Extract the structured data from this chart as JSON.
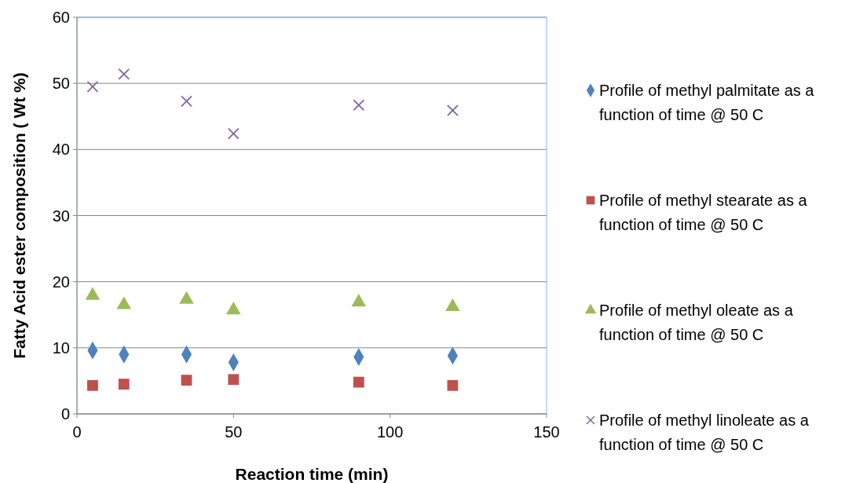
{
  "chart_data": {
    "type": "scatter",
    "xlabel": "Reaction time (min)",
    "ylabel": "Fatty Acid ester composition ( Wt %)",
    "x": [
      5,
      15,
      35,
      50,
      90,
      120
    ],
    "xlim": [
      0,
      150
    ],
    "xticks": [
      0,
      50,
      100,
      150
    ],
    "ylim": [
      0,
      60
    ],
    "yticks": [
      0,
      10,
      20,
      30,
      40,
      50,
      60
    ],
    "grid": "y",
    "legend": "right",
    "series": [
      {
        "name": "Profile of methyl palmitate as a function of time @ 50 C",
        "color": "#4f81bd",
        "marker": "diamond",
        "values": [
          9.6,
          9.0,
          9.0,
          7.8,
          8.6,
          8.8
        ]
      },
      {
        "name": "Profile of methyl stearate as a function of time @ 50 C",
        "color": "#c0504d",
        "marker": "square",
        "values": [
          4.3,
          4.5,
          5.1,
          5.2,
          4.8,
          4.3
        ]
      },
      {
        "name": "Profile of methyl oleate as a function of time @ 50 C",
        "color": "#9bbb59",
        "marker": "triangle",
        "values": [
          17.9,
          16.5,
          17.3,
          15.7,
          16.9,
          16.2
        ]
      },
      {
        "name": "Profile of methyl linoleate as a function of time @ 50 C",
        "color": "#8064a2",
        "marker": "cross",
        "values": [
          49.5,
          51.4,
          47.3,
          42.4,
          46.7,
          45.9
        ]
      }
    ]
  }
}
